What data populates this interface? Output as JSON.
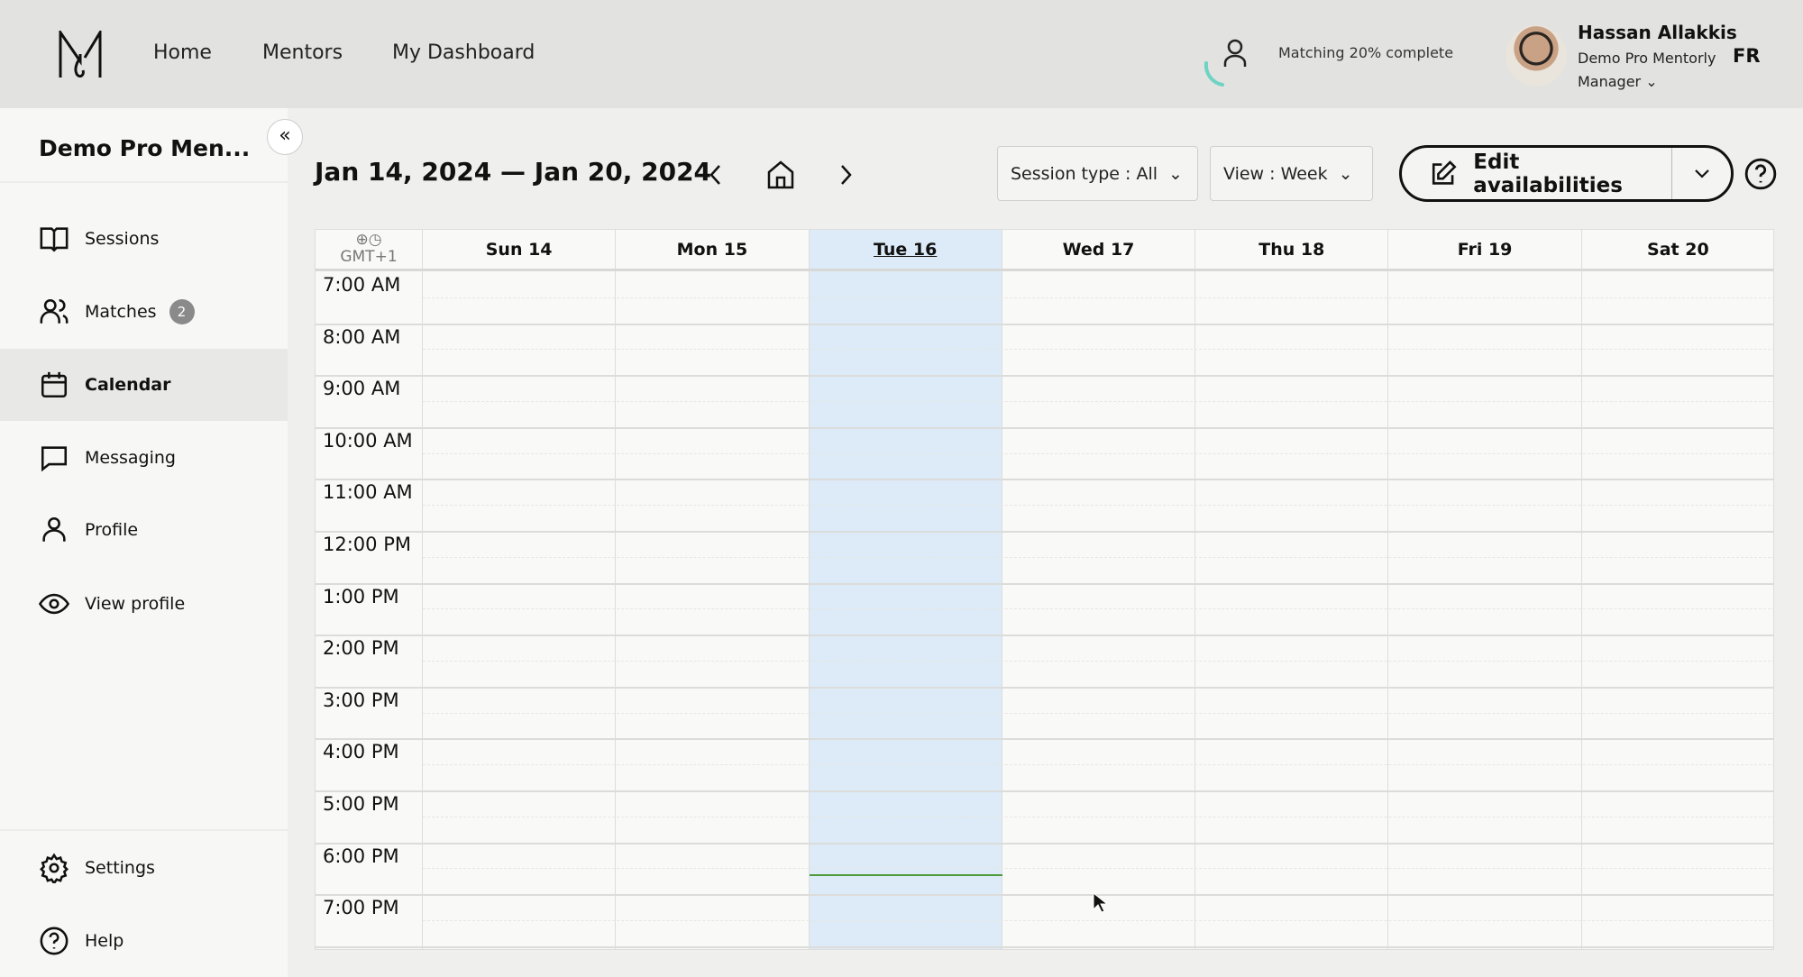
{
  "header": {
    "nav": [
      "Home",
      "Mentors",
      "My Dashboard"
    ],
    "matching": {
      "label": "Matching 20% complete",
      "percent": 20,
      "color": "#6ed3c3"
    },
    "user": {
      "name": "Hassan Allakkis",
      "org": "Demo Pro Mentorly",
      "role": "Manager"
    },
    "language": "FR"
  },
  "sidebar": {
    "title": "Demo Pro Men...",
    "items": [
      {
        "label": "Sessions",
        "icon": "book-icon"
      },
      {
        "label": "Matches",
        "icon": "users-icon",
        "badge": "2"
      },
      {
        "label": "Calendar",
        "icon": "calendar-icon",
        "active": true
      },
      {
        "label": "Messaging",
        "icon": "chat-icon"
      },
      {
        "label": "Profile",
        "icon": "user-icon"
      },
      {
        "label": "View profile",
        "icon": "eye-icon"
      }
    ],
    "bottom": [
      {
        "label": "Settings",
        "icon": "gear-icon"
      },
      {
        "label": "Help",
        "icon": "help-icon"
      }
    ]
  },
  "toolbar": {
    "date_range": "Jan 14, 2024 — Jan 20, 2024",
    "session_type": "Session type : All",
    "view": "View : Week",
    "edit": "Edit availabilities"
  },
  "calendar": {
    "timezone": "GMT+1",
    "days": [
      "Sun 14",
      "Mon 15",
      "Tue 16",
      "Wed 17",
      "Thu 18",
      "Fri 19",
      "Sat 20"
    ],
    "today_index": 2,
    "today_color": "#dcebf7",
    "times": [
      "7:00 AM",
      "8:00 AM",
      "9:00 AM",
      "10:00 AM",
      "11:00 AM",
      "12:00 PM",
      "1:00 PM",
      "2:00 PM",
      "3:00 PM",
      "4:00 PM",
      "5:00 PM",
      "6:00 PM",
      "7:00 PM"
    ],
    "current_time_hours": 18.62
  }
}
